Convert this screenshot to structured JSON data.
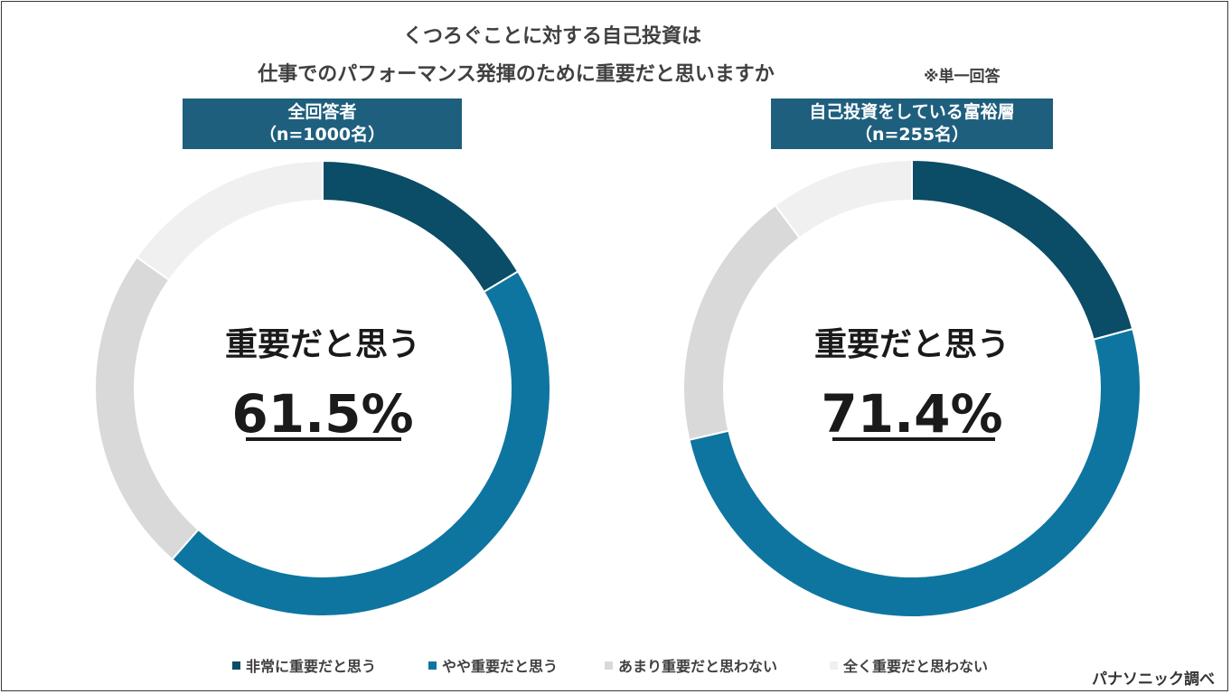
{
  "title_line1": "くつろぐことに対する自己投資は",
  "title_line2": "仕事でのパフォーマンス発揮のために重要だと思いますか",
  "note": "※単一回答",
  "source": "パナソニック調べ",
  "colors": {
    "very_important": "#0b4c66",
    "somewhat_important": "#0e75a0",
    "not_very_important": "#d9d9d9",
    "not_at_all_important": "#f0f0f0",
    "label_bg": "#1e5f7e"
  },
  "chart_data": [
    {
      "type": "pie",
      "style": "donut",
      "label_line1": "全回答者",
      "label_line2": "（n=1000名）",
      "center_caption": "重要だと思う",
      "center_value": "61.5%",
      "categories": [
        "非常に重要だと思う",
        "やや重要だと思う",
        "あまり重要だと思わない",
        "全く重要だと思わない"
      ],
      "values": [
        16.4,
        45.1,
        23.3,
        15.2
      ]
    },
    {
      "type": "pie",
      "style": "donut",
      "label_line1": "自己投資をしている富裕層",
      "label_line2": "（n=255名）",
      "center_caption": "重要だと思う",
      "center_value": "71.4%",
      "categories": [
        "非常に重要だと思う",
        "やや重要だと思う",
        "あまり重要だと思わない",
        "全く重要だと思わない"
      ],
      "values": [
        20.8,
        50.6,
        18.4,
        10.2
      ]
    }
  ],
  "legend": [
    {
      "label": "非常に重要だと思う"
    },
    {
      "label": "やや重要だと思う"
    },
    {
      "label": "あまり重要だと思わない"
    },
    {
      "label": "全く重要だと思わない"
    }
  ]
}
